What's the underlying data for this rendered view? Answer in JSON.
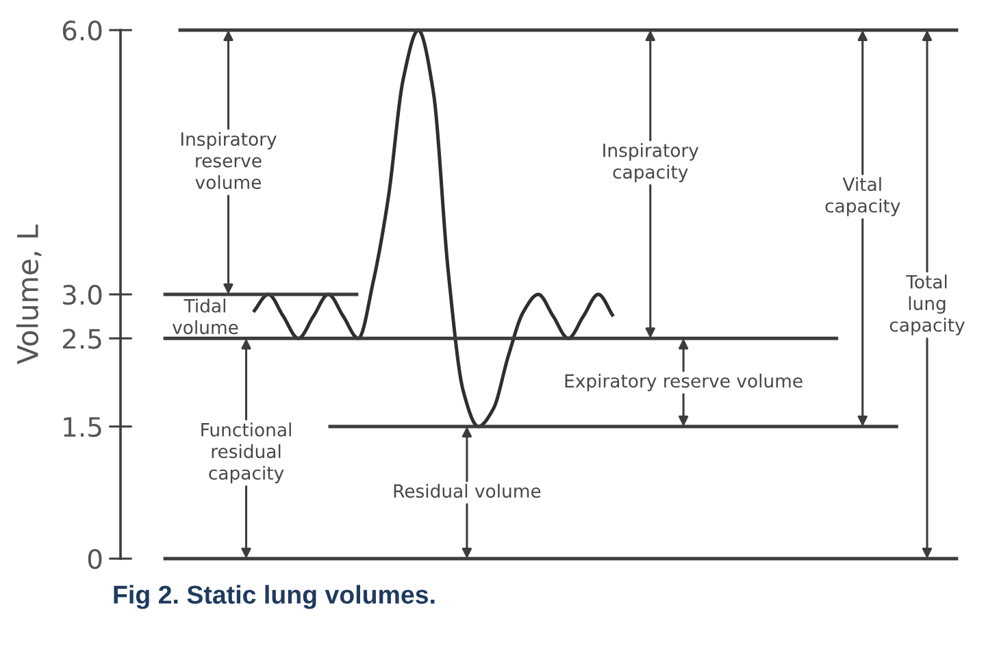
{
  "chart_data": {
    "type": "line",
    "title": "Fig 2. Static lung volumes.",
    "ylabel": "Volume, L",
    "categories": [
      null,
      null,
      null,
      null,
      null,
      null,
      null,
      null,
      null,
      null,
      null,
      null,
      null,
      null,
      null,
      null,
      null,
      null,
      null,
      null,
      null,
      null,
      null,
      null,
      null,
      null,
      null,
      null,
      null,
      null,
      null,
      null,
      null,
      null,
      null,
      null,
      null,
      null,
      null,
      null,
      null,
      null,
      null,
      null,
      null,
      null,
      null,
      null,
      null,
      null,
      null,
      null,
      null,
      null
    ],
    "ylim": [
      0,
      6.0
    ],
    "yticks": [
      0,
      1.5,
      2.5,
      {
        "value": 3.0,
        "label": "3.0"
      },
      {
        "value": 6.0,
        "label": "6.0"
      }
    ],
    "tick_labels": "y",
    "series": [
      {
        "color": "#2e2e2e",
        "values": [
          null,
          null,
          null,
          null,
          null,
          null,
          2.8,
          3.0,
          2.75,
          2.5,
          2.75,
          3.0,
          2.75,
          2.5,
          3.15,
          4.1,
          5.45,
          6.0,
          5.3,
          3.25,
          1.9,
          1.5,
          1.7,
          2.3,
          2.8,
          3.0,
          2.75,
          2.5,
          2.75,
          3.0,
          2.75,
          null,
          null,
          null,
          null,
          null,
          null,
          null,
          null,
          null,
          null,
          null,
          null,
          null,
          null,
          null,
          null,
          null,
          null,
          null,
          null,
          null,
          null,
          null
        ]
      },
      {
        "color": "#3c3c3c",
        "values": [
          null,
          6.0,
          6.0,
          6.0,
          6.0,
          6.0,
          6.0,
          6.0,
          6.0,
          6.0,
          6.0,
          6.0,
          6.0,
          6.0,
          6.0,
          6.0,
          6.0,
          6.0,
          6.0,
          6.0,
          6.0,
          6.0,
          6.0,
          6.0,
          6.0,
          6.0,
          6.0,
          6.0,
          6.0,
          6.0,
          6.0,
          6.0,
          6.0,
          6.0,
          6.0,
          6.0,
          6.0,
          6.0,
          6.0,
          6.0,
          6.0,
          6.0,
          6.0,
          6.0,
          6.0,
          6.0,
          6.0,
          6.0,
          6.0,
          6.0,
          6.0,
          6.0,
          6.0,
          6.0
        ]
      },
      {
        "color": "#3c3c3c",
        "values": [
          3.0,
          3.0,
          3.0,
          3.0,
          3.0,
          3.0,
          3.0,
          3.0,
          3.0,
          3.0,
          3.0,
          3.0,
          3.0,
          3.0,
          null,
          null,
          null,
          null,
          null,
          null,
          null,
          null,
          null,
          null,
          null,
          null,
          null,
          null,
          null,
          null,
          null,
          null,
          null,
          null,
          null,
          null,
          null,
          null,
          null,
          null,
          null,
          null,
          null,
          null,
          null,
          null,
          null,
          null,
          null,
          null,
          null,
          null,
          null,
          null
        ]
      },
      {
        "color": "#3c3c3c",
        "values": [
          2.5,
          2.5,
          2.5,
          2.5,
          2.5,
          2.5,
          2.5,
          2.5,
          2.5,
          2.5,
          2.5,
          2.5,
          2.5,
          2.5,
          2.5,
          2.5,
          2.5,
          2.5,
          2.5,
          2.5,
          2.5,
          2.5,
          2.5,
          2.5,
          2.5,
          2.5,
          2.5,
          2.5,
          2.5,
          2.5,
          2.5,
          2.5,
          2.5,
          2.5,
          2.5,
          2.5,
          2.5,
          2.5,
          2.5,
          2.5,
          2.5,
          2.5,
          2.5,
          2.5,
          2.5,
          2.5,
          null,
          null,
          null,
          null,
          null,
          null,
          null,
          null
        ]
      },
      {
        "color": "#3c3c3c",
        "values": [
          null,
          null,
          null,
          null,
          null,
          null,
          null,
          null,
          null,
          null,
          null,
          1.5,
          1.5,
          1.5,
          1.5,
          1.5,
          1.5,
          1.5,
          1.5,
          1.5,
          1.5,
          1.5,
          1.5,
          1.5,
          1.5,
          1.5,
          1.5,
          1.5,
          1.5,
          1.5,
          1.5,
          1.5,
          1.5,
          1.5,
          1.5,
          1.5,
          1.5,
          1.5,
          1.5,
          1.5,
          1.5,
          1.5,
          1.5,
          1.5,
          1.5,
          1.5,
          1.5,
          1.5,
          1.5,
          1.5,
          null,
          null,
          null,
          null
        ]
      },
      {
        "color": "#3c3c3c",
        "values": [
          0,
          0,
          0,
          0,
          0,
          0,
          0,
          0,
          0,
          0,
          0,
          0,
          0,
          0,
          0,
          0,
          0,
          0,
          0,
          0,
          0,
          0,
          0,
          0,
          0,
          0,
          0,
          0,
          0,
          0,
          0,
          0,
          0,
          0,
          0,
          0,
          0,
          0,
          0,
          0,
          0,
          0,
          0,
          0,
          0,
          0,
          0,
          0,
          0,
          0,
          0,
          0,
          0,
          0
        ]
      }
    ],
    "annotations": [
      "Inspiratory\nreserve\nvolume",
      "Inspiratory\ncapacity",
      "Vital\ncapacity",
      "Total\nlung\ncapacity",
      "Functional\nresidual\ncapacity",
      "Residual volume",
      "Expiratory reserve volume",
      "Tidal\nvolume"
    ]
  }
}
